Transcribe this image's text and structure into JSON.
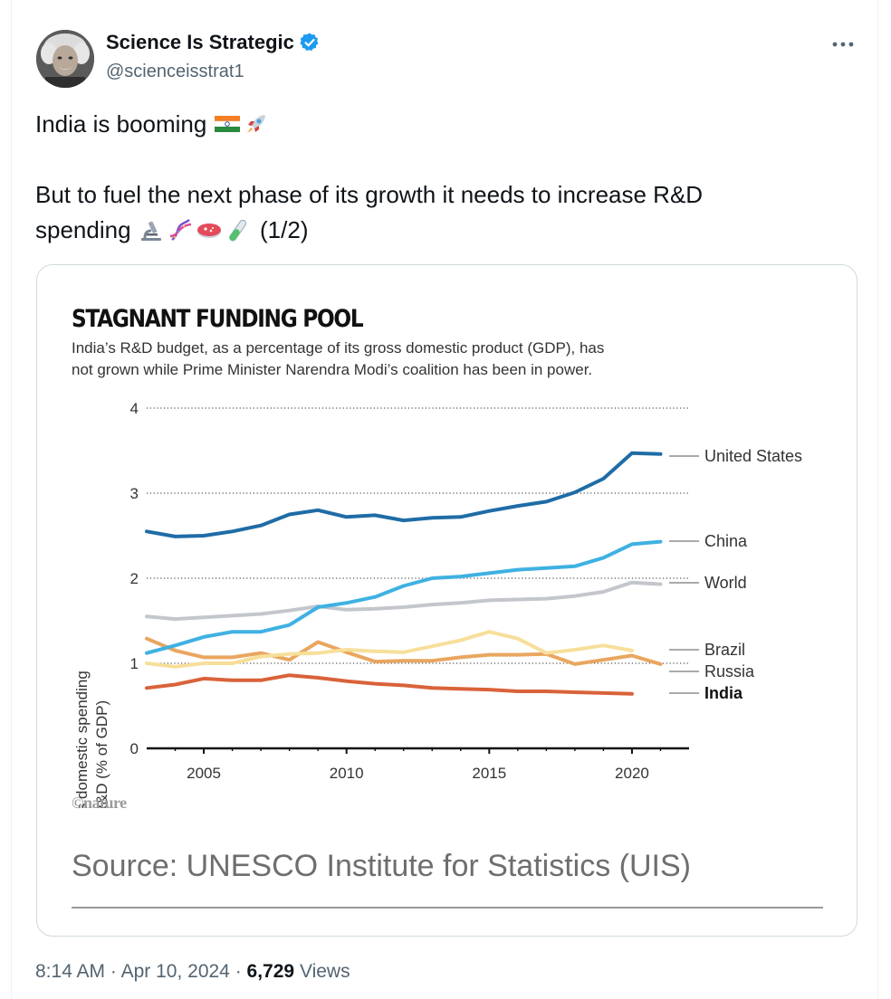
{
  "author": {
    "display_name": "Science Is Strategic",
    "handle": "@scienceisstrat1",
    "verified_icon": "verified-badge-icon",
    "avatar_icon": "avatar-portrait"
  },
  "more_icon": "more-options-icon",
  "tweet": {
    "line1": "India is booming",
    "line1_emojis": [
      "india-flag-emoji",
      "rocket-emoji"
    ],
    "line2": "But to fuel the next phase of its growth it needs to increase R&D",
    "line3": "spending",
    "line3_emojis": [
      "microscope-emoji",
      "dna-emoji",
      "petri-dish-emoji",
      "test-tube-emoji"
    ],
    "line3_suffix": "(1/2)"
  },
  "media": {
    "nature_logo": "©nature",
    "source": "Source: UNESCO Institute for Statistics (UIS)"
  },
  "chart_data": {
    "type": "line",
    "title": "STAGNANT FUNDING POOL",
    "subtitle_line1": "India’s R&D budget, as a percentage of its gross domestic product (GDP), has",
    "subtitle_line2": "not grown while Prime Minister Narendra Modi’s coalition has been in power.",
    "ylabel_line1": "Gross domestic spending",
    "ylabel_line2": "on R&D (% of GDP)",
    "xlabel": "",
    "xlim": [
      2003,
      2022
    ],
    "ylim": [
      0,
      4
    ],
    "xticks": [
      2005,
      2010,
      2015,
      2020
    ],
    "yticks": [
      0,
      1,
      2,
      3,
      4
    ],
    "grid": "horizontal-dotted",
    "legend": "right-end-labels",
    "series": [
      {
        "name": "United States",
        "color": "#1f6ca6",
        "x": [
          2003,
          2004,
          2005,
          2006,
          2007,
          2008,
          2009,
          2010,
          2011,
          2012,
          2013,
          2014,
          2015,
          2016,
          2017,
          2018,
          2019,
          2020,
          2021
        ],
        "values": [
          2.55,
          2.49,
          2.5,
          2.55,
          2.62,
          2.75,
          2.8,
          2.72,
          2.74,
          2.68,
          2.71,
          2.72,
          2.79,
          2.85,
          2.9,
          3.01,
          3.17,
          3.47,
          3.46
        ]
      },
      {
        "name": "China",
        "color": "#3fb1e2",
        "x": [
          2003,
          2004,
          2005,
          2006,
          2007,
          2008,
          2009,
          2010,
          2011,
          2012,
          2013,
          2014,
          2015,
          2016,
          2017,
          2018,
          2019,
          2020,
          2021
        ],
        "values": [
          1.12,
          1.21,
          1.31,
          1.37,
          1.37,
          1.45,
          1.66,
          1.71,
          1.78,
          1.91,
          2.0,
          2.02,
          2.06,
          2.1,
          2.12,
          2.14,
          2.24,
          2.4,
          2.43
        ]
      },
      {
        "name": "World",
        "color": "#c3c6cc",
        "x": [
          2003,
          2004,
          2005,
          2006,
          2007,
          2008,
          2009,
          2010,
          2011,
          2012,
          2013,
          2014,
          2015,
          2016,
          2017,
          2018,
          2019,
          2020,
          2021
        ],
        "values": [
          1.55,
          1.52,
          1.54,
          1.56,
          1.58,
          1.62,
          1.67,
          1.63,
          1.64,
          1.66,
          1.69,
          1.71,
          1.74,
          1.75,
          1.76,
          1.79,
          1.84,
          1.95,
          1.93
        ]
      },
      {
        "name": "Brazil",
        "color": "#f7df9a",
        "x": [
          2003,
          2004,
          2005,
          2006,
          2007,
          2008,
          2009,
          2010,
          2011,
          2012,
          2013,
          2014,
          2015,
          2016,
          2017,
          2018,
          2019,
          2020
        ],
        "values": [
          1.0,
          0.96,
          1.0,
          1.0,
          1.08,
          1.11,
          1.12,
          1.16,
          1.14,
          1.13,
          1.2,
          1.27,
          1.37,
          1.29,
          1.12,
          1.16,
          1.21,
          1.15
        ]
      },
      {
        "name": "Russia",
        "color": "#e9a65f",
        "x": [
          2003,
          2004,
          2005,
          2006,
          2007,
          2008,
          2009,
          2010,
          2011,
          2012,
          2013,
          2014,
          2015,
          2016,
          2017,
          2018,
          2019,
          2020,
          2021
        ],
        "values": [
          1.29,
          1.15,
          1.07,
          1.07,
          1.12,
          1.04,
          1.25,
          1.13,
          1.02,
          1.03,
          1.03,
          1.07,
          1.1,
          1.1,
          1.11,
          0.99,
          1.04,
          1.09,
          0.99
        ]
      },
      {
        "name": "India",
        "color": "#d9623a",
        "x": [
          2003,
          2004,
          2005,
          2006,
          2007,
          2008,
          2009,
          2010,
          2011,
          2012,
          2013,
          2014,
          2015,
          2016,
          2017,
          2018,
          2019,
          2020
        ],
        "values": [
          0.71,
          0.75,
          0.82,
          0.8,
          0.8,
          0.86,
          0.83,
          0.79,
          0.76,
          0.74,
          0.71,
          0.7,
          0.69,
          0.67,
          0.67,
          0.66,
          0.65,
          0.64
        ]
      }
    ]
  },
  "meta": {
    "time": "8:14 AM",
    "separator": "·",
    "date": "Apr 10, 2024",
    "views_count": "6,729",
    "views_label": "Views"
  }
}
